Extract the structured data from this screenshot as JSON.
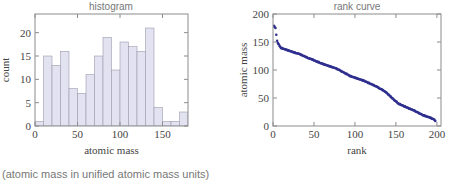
{
  "chart_data": [
    {
      "type": "histogram",
      "title": "histogram",
      "x_label": "atomic mass",
      "y_label": "count",
      "bins": [
        0,
        10,
        20,
        30,
        40,
        50,
        60,
        70,
        80,
        90,
        100,
        110,
        120,
        130,
        140,
        150,
        160,
        170,
        180
      ],
      "values": [
        1,
        15,
        13,
        16,
        8,
        7,
        11,
        15,
        19,
        12,
        18,
        17,
        16,
        21,
        4,
        1,
        1,
        3
      ],
      "color": "#e2e2f0",
      "xlim": [
        0,
        180
      ],
      "xticks": [
        0,
        50,
        100,
        150
      ],
      "ylim": [
        0,
        24
      ],
      "yticks": [
        0,
        5,
        10,
        15,
        20
      ],
      "grid": false
    },
    {
      "type": "scatter",
      "title": "rank curve",
      "x_label": "rank",
      "y_label": "atomic mass",
      "x": [
        1,
        2,
        3,
        4,
        5,
        6,
        7,
        8,
        9,
        10,
        11,
        12,
        13,
        14,
        15,
        16,
        17,
        18,
        19,
        20,
        21,
        22,
        23,
        24,
        25,
        26,
        27,
        28,
        29,
        30,
        31,
        32,
        33,
        34,
        35,
        36,
        37,
        38,
        39,
        40,
        41,
        42,
        43,
        44,
        45,
        46,
        47,
        48,
        49,
        50,
        51,
        52,
        53,
        54,
        55,
        56,
        57,
        58,
        59,
        60,
        61,
        62,
        63,
        64,
        65,
        66,
        67,
        68,
        69,
        70,
        71,
        72,
        73,
        74,
        75,
        76,
        77,
        78,
        79,
        80,
        81,
        82,
        83,
        84,
        85,
        86,
        87,
        88,
        89,
        90,
        91,
        92,
        93,
        94,
        95,
        96,
        97,
        98,
        99,
        100,
        101,
        102,
        103,
        104,
        105,
        106,
        107,
        108,
        109,
        110,
        111,
        112,
        113,
        114,
        115,
        116,
        117,
        118,
        119,
        120,
        121,
        122,
        123,
        124,
        125,
        126,
        127,
        128,
        129,
        130,
        131,
        132,
        133,
        134,
        135,
        136,
        137,
        138,
        139,
        140,
        141,
        142,
        143,
        144,
        145,
        146,
        147,
        148,
        149,
        150,
        151,
        152,
        153,
        154,
        155,
        156,
        157,
        158,
        159,
        160,
        161,
        162,
        163,
        164,
        165,
        166,
        167,
        168,
        169,
        170,
        171,
        172,
        173,
        174,
        175,
        176,
        177,
        178,
        179,
        180,
        181,
        182,
        183,
        184,
        185,
        186,
        187,
        188,
        189,
        190,
        191,
        192,
        193,
        194,
        195,
        196,
        197,
        198
      ],
      "values": [
        179,
        177,
        175,
        163,
        152,
        148,
        146,
        143,
        141,
        139,
        139,
        138,
        138,
        137,
        137,
        136,
        136,
        135,
        135,
        134,
        134,
        133,
        133,
        132,
        132,
        131,
        131,
        130,
        130,
        130,
        129,
        129,
        128,
        127,
        127,
        126,
        125,
        125,
        124,
        123,
        123,
        122,
        121,
        121,
        120,
        120,
        119,
        119,
        118,
        117,
        117,
        116,
        115,
        115,
        114,
        114,
        113,
        112,
        112,
        111,
        111,
        110,
        110,
        109,
        109,
        108,
        108,
        107,
        107,
        106,
        106,
        105,
        105,
        104,
        104,
        103,
        103,
        102,
        101,
        101,
        100,
        99,
        98,
        97,
        97,
        96,
        95,
        94,
        93,
        93,
        92,
        91,
        90,
        89,
        89,
        88,
        88,
        87,
        87,
        86,
        86,
        85,
        85,
        84,
        84,
        83,
        83,
        82,
        82,
        81,
        81,
        80,
        79,
        79,
        78,
        77,
        77,
        76,
        75,
        75,
        74,
        73,
        73,
        72,
        71,
        71,
        70,
        69,
        68,
        67,
        66,
        66,
        65,
        64,
        63,
        62,
        61,
        60,
        59,
        57,
        56,
        55,
        53,
        52,
        50,
        49,
        48,
        46,
        45,
        44,
        43,
        41,
        40,
        39,
        39,
        38,
        37,
        37,
        36,
        35,
        35,
        34,
        33,
        33,
        32,
        31,
        31,
        30,
        30,
        29,
        28,
        28,
        27,
        26,
        25,
        25,
        24,
        23,
        22,
        22,
        21,
        20,
        19,
        19,
        18,
        18,
        17,
        17,
        16,
        16,
        15,
        15,
        14,
        13,
        13,
        12,
        11,
        9
      ],
      "color": "#2f2f8f",
      "marker": "circle",
      "xlim": [
        0,
        205
      ],
      "xticks": [
        0,
        50,
        100,
        150,
        200
      ],
      "ylim": [
        0,
        200
      ],
      "yticks": [
        0,
        50,
        100,
        150,
        200
      ],
      "grid": false
    }
  ],
  "caption": "(atomic mass in unified atomic mass units)"
}
